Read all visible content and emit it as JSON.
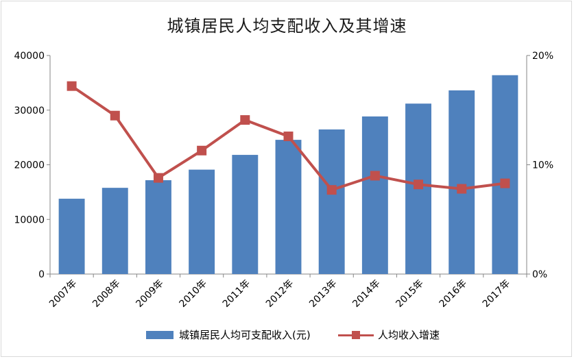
{
  "chart_data": {
    "type": "bar",
    "title": "城镇居民人均支配收入及其增速",
    "categories": [
      "2007年",
      "2008年",
      "2009年",
      "2010年",
      "2011年",
      "2012年",
      "2013年",
      "2014年",
      "2015年",
      "2016年",
      "2017年"
    ],
    "series": [
      {
        "name": "城镇居民人均可支配收入(元)",
        "type": "bar",
        "axis": "left",
        "color": "#4f81bd",
        "values": [
          13786,
          15781,
          17175,
          19109,
          21810,
          24565,
          26467,
          28844,
          31195,
          33616,
          36396
        ]
      },
      {
        "name": "人均收入增速",
        "type": "line",
        "axis": "right",
        "color": "#c0504d",
        "values": [
          17.2,
          14.5,
          8.8,
          11.3,
          14.1,
          12.6,
          7.7,
          9.0,
          8.2,
          7.8,
          8.3
        ]
      }
    ],
    "y_left": {
      "min": 0,
      "max": 40000,
      "ticks": [
        "0",
        "10000",
        "20000",
        "30000",
        "40000"
      ]
    },
    "y_right": {
      "min": 0,
      "max": 20,
      "ticks": [
        "0%",
        "10%",
        "20%"
      ]
    },
    "legend_position": "bottom",
    "grid": false
  }
}
